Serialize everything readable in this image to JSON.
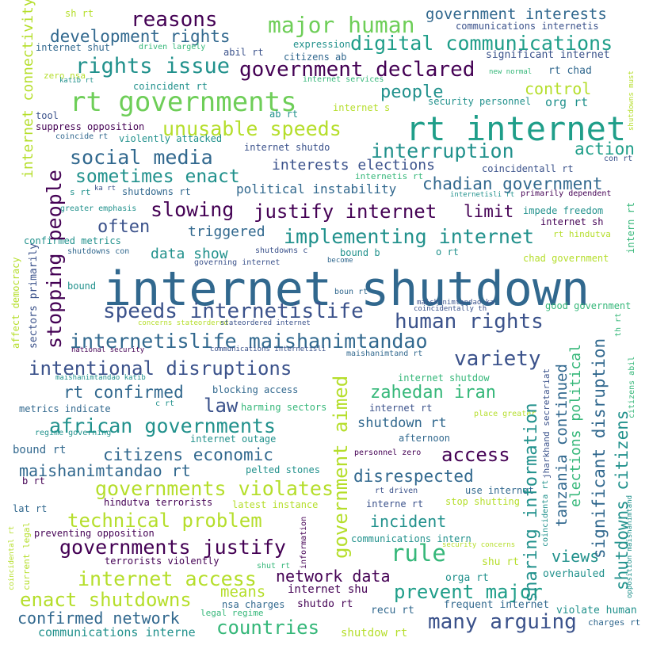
{
  "background": "#ffffff",
  "palette": {
    "deep_purple": "#440154",
    "indigo": "#3b528b",
    "blue": "#31688e",
    "teal": "#21918c",
    "green_teal": "#1f9e89",
    "green": "#35b779",
    "lime": "#6ece58",
    "yellow_green": "#b5de2b",
    "yellow": "#d8e219"
  },
  "words": [
    {
      "text": "internet shutdown",
      "color": "#31688e",
      "orientation": "horizontal"
    },
    {
      "text": "rt internet",
      "color": "#1f9e89",
      "orientation": "horizontal"
    },
    {
      "text": "rt governments",
      "color": "#6ece58",
      "orientation": "horizontal"
    },
    {
      "text": "human rights",
      "color": "#3b528b",
      "orientation": "horizontal"
    },
    {
      "text": "government declared",
      "color": "#440154",
      "orientation": "horizontal"
    },
    {
      "text": "digital communications",
      "color": "#1f9e89",
      "orientation": "horizontal"
    },
    {
      "text": "major human",
      "color": "#6ece58",
      "orientation": "horizontal"
    },
    {
      "text": "reasons",
      "color": "#440154",
      "orientation": "horizontal"
    },
    {
      "text": "development rights",
      "color": "#31688e",
      "orientation": "horizontal"
    },
    {
      "text": "rights issue",
      "color": "#21918c",
      "orientation": "horizontal"
    },
    {
      "text": "government interests",
      "color": "#31688e",
      "orientation": "horizontal"
    },
    {
      "text": "communications internetis",
      "color": "#3b528b",
      "orientation": "horizontal"
    },
    {
      "text": "significant internet",
      "color": "#3b528b",
      "orientation": "horizontal"
    },
    {
      "text": "unusable speeds",
      "color": "#b5de2b",
      "orientation": "horizontal"
    },
    {
      "text": "people",
      "color": "#21918c",
      "orientation": "horizontal"
    },
    {
      "text": "control",
      "color": "#b5de2b",
      "orientation": "horizontal"
    },
    {
      "text": "org rt",
      "color": "#21918c",
      "orientation": "horizontal"
    },
    {
      "text": "rt chad",
      "color": "#31688e",
      "orientation": "horizontal"
    },
    {
      "text": "interruption",
      "color": "#21918c",
      "orientation": "horizontal"
    },
    {
      "text": "action",
      "color": "#1f9e89",
      "orientation": "horizontal"
    },
    {
      "text": "social media",
      "color": "#31688e",
      "orientation": "horizontal"
    },
    {
      "text": "sometimes enact",
      "color": "#21918c",
      "orientation": "horizontal"
    },
    {
      "text": "interests elections",
      "color": "#3b528b",
      "orientation": "horizontal"
    },
    {
      "text": "chadian government",
      "color": "#31688e",
      "orientation": "horizontal"
    },
    {
      "text": "political instability",
      "color": "#31688e",
      "orientation": "horizontal"
    },
    {
      "text": "slowing",
      "color": "#440154",
      "orientation": "horizontal"
    },
    {
      "text": "justify internet",
      "color": "#440154",
      "orientation": "horizontal"
    },
    {
      "text": "limit",
      "color": "#440154",
      "orientation": "horizontal"
    },
    {
      "text": "implementing internet",
      "color": "#21918c",
      "orientation": "horizontal"
    },
    {
      "text": "often",
      "color": "#3b528b",
      "orientation": "horizontal"
    },
    {
      "text": "triggered",
      "color": "#31688e",
      "orientation": "horizontal"
    },
    {
      "text": "data show",
      "color": "#21918c",
      "orientation": "horizontal"
    },
    {
      "text": "speeds internetislife",
      "color": "#3b528b",
      "orientation": "horizontal"
    },
    {
      "text": "internetislife maishanimtandao",
      "color": "#31688e",
      "orientation": "horizontal"
    },
    {
      "text": "intentional disruptions",
      "color": "#3b528b",
      "orientation": "horizontal"
    },
    {
      "text": "variety",
      "color": "#3b528b",
      "orientation": "horizontal"
    },
    {
      "text": "rt confirmed",
      "color": "#31688e",
      "orientation": "horizontal"
    },
    {
      "text": "law",
      "color": "#3b528b",
      "orientation": "horizontal"
    },
    {
      "text": "zahedan iran",
      "color": "#35b779",
      "orientation": "horizontal"
    },
    {
      "text": "african governments",
      "color": "#21918c",
      "orientation": "horizontal"
    },
    {
      "text": "shutdown rt",
      "color": "#31688e",
      "orientation": "horizontal"
    },
    {
      "text": "citizens economic",
      "color": "#31688e",
      "orientation": "horizontal"
    },
    {
      "text": "access",
      "color": "#440154",
      "orientation": "horizontal"
    },
    {
      "text": "maishanimtandao rt",
      "color": "#31688e",
      "orientation": "horizontal"
    },
    {
      "text": "disrespected",
      "color": "#31688e",
      "orientation": "horizontal"
    },
    {
      "text": "governments violates",
      "color": "#b5de2b",
      "orientation": "horizontal"
    },
    {
      "text": "technical problem",
      "color": "#b5de2b",
      "orientation": "horizontal"
    },
    {
      "text": "incident",
      "color": "#21918c",
      "orientation": "horizontal"
    },
    {
      "text": "governments justify",
      "color": "#440154",
      "orientation": "horizontal"
    },
    {
      "text": "rule",
      "color": "#35b779",
      "orientation": "horizontal"
    },
    {
      "text": "views",
      "color": "#21918c",
      "orientation": "horizontal"
    },
    {
      "text": "internet access",
      "color": "#b5de2b",
      "orientation": "horizontal"
    },
    {
      "text": "enact shutdowns",
      "color": "#b5de2b",
      "orientation": "horizontal"
    },
    {
      "text": "means",
      "color": "#b5de2b",
      "orientation": "horizontal"
    },
    {
      "text": "network data",
      "color": "#440154",
      "orientation": "horizontal"
    },
    {
      "text": "prevent major",
      "color": "#1f9e89",
      "orientation": "horizontal"
    },
    {
      "text": "confirmed network",
      "color": "#31688e",
      "orientation": "horizontal"
    },
    {
      "text": "many arguing",
      "color": "#3b528b",
      "orientation": "horizontal"
    },
    {
      "text": "countries",
      "color": "#35b779",
      "orientation": "horizontal"
    },
    {
      "text": "communications interne",
      "color": "#21918c",
      "orientation": "horizontal"
    },
    {
      "text": "shutdow rt",
      "color": "#b5de2b",
      "orientation": "horizontal"
    },
    {
      "text": "frequent internet",
      "color": "#31688e",
      "orientation": "horizontal"
    },
    {
      "text": "recu rt",
      "color": "#31688e",
      "orientation": "horizontal"
    },
    {
      "text": "violate human",
      "color": "#21918c",
      "orientation": "horizontal"
    },
    {
      "text": "charges rt",
      "color": "#31688e",
      "orientation": "horizontal"
    },
    {
      "text": "legal regime",
      "color": "#35b779",
      "orientation": "horizontal"
    },
    {
      "text": "nsa charges",
      "color": "#31688e",
      "orientation": "horizontal"
    },
    {
      "text": "shutdo rt",
      "color": "#440154",
      "orientation": "horizontal"
    },
    {
      "text": "internet shu",
      "color": "#440154",
      "orientation": "horizontal"
    },
    {
      "text": "orga rt",
      "color": "#21918c",
      "orientation": "horizontal"
    },
    {
      "text": "shu rt",
      "color": "#b5de2b",
      "orientation": "horizontal"
    },
    {
      "text": "overhauled",
      "color": "#21918c",
      "orientation": "horizontal"
    },
    {
      "text": "sh rt",
      "color": "#b5de2b",
      "orientation": "horizontal"
    },
    {
      "text": "internet shut",
      "color": "#31688e",
      "orientation": "horizontal"
    },
    {
      "text": "driven largely",
      "color": "#35b779",
      "orientation": "horizontal"
    },
    {
      "text": "abil rt",
      "color": "#3b528b",
      "orientation": "horizontal"
    },
    {
      "text": "expression",
      "color": "#21918c",
      "orientation": "horizontal"
    },
    {
      "text": "citizens ab",
      "color": "#31688e",
      "orientation": "horizontal"
    },
    {
      "text": "zero nsa",
      "color": "#b5de2b",
      "orientation": "horizontal"
    },
    {
      "text": "katib rt",
      "color": "#21918c",
      "orientation": "horizontal"
    },
    {
      "text": "coincident rt",
      "color": "#21918c",
      "orientation": "horizontal"
    },
    {
      "text": "internet services",
      "color": "#35b779",
      "orientation": "horizontal"
    },
    {
      "text": "new normal",
      "color": "#35b779",
      "orientation": "horizontal"
    },
    {
      "text": "internet s",
      "color": "#b5de2b",
      "orientation": "horizontal"
    },
    {
      "text": "security personnel",
      "color": "#21918c",
      "orientation": "horizontal"
    },
    {
      "text": "ab rt",
      "color": "#21918c",
      "orientation": "horizontal"
    },
    {
      "text": "tool",
      "color": "#3b528b",
      "orientation": "horizontal"
    },
    {
      "text": "suppress opposition",
      "color": "#440154",
      "orientation": "horizontal"
    },
    {
      "text": "coincide rt",
      "color": "#31688e",
      "orientation": "horizontal"
    },
    {
      "text": "violently attacked",
      "color": "#21918c",
      "orientation": "horizontal"
    },
    {
      "text": "internet shutdo",
      "color": "#3b528b",
      "orientation": "horizontal"
    },
    {
      "text": "con rt",
      "color": "#3b528b",
      "orientation": "horizontal"
    },
    {
      "text": "coincidentall rt",
      "color": "#3b528b",
      "orientation": "horizontal"
    },
    {
      "text": "internetis rt",
      "color": "#35b779",
      "orientation": "horizontal"
    },
    {
      "text": "s rt",
      "color": "#21918c",
      "orientation": "horizontal"
    },
    {
      "text": "ka rt",
      "color": "#3b528b",
      "orientation": "horizontal"
    },
    {
      "text": "shutdowns rt",
      "color": "#31688e",
      "orientation": "horizontal"
    },
    {
      "text": "internetisli rt",
      "color": "#21918c",
      "orientation": "horizontal"
    },
    {
      "text": "primarily dependent",
      "color": "#440154",
      "orientation": "horizontal"
    },
    {
      "text": "greater emphasis",
      "color": "#21918c",
      "orientation": "horizontal"
    },
    {
      "text": "impede freedom",
      "color": "#21918c",
      "orientation": "horizontal"
    },
    {
      "text": "internet sh",
      "color": "#440154",
      "orientation": "horizontal"
    },
    {
      "text": "rt hindutva",
      "color": "#b5de2b",
      "orientation": "horizontal"
    },
    {
      "text": "confirmed metrics",
      "color": "#21918c",
      "orientation": "horizontal"
    },
    {
      "text": "shutdowns con",
      "color": "#31688e",
      "orientation": "horizontal"
    },
    {
      "text": "shutdowns c",
      "color": "#3b528b",
      "orientation": "horizontal"
    },
    {
      "text": "bound b",
      "color": "#21918c",
      "orientation": "horizontal"
    },
    {
      "text": "o rt",
      "color": "#21918c",
      "orientation": "horizontal"
    },
    {
      "text": "governing internet",
      "color": "#3b528b",
      "orientation": "horizontal"
    },
    {
      "text": "become",
      "color": "#31688e",
      "orientation": "horizontal"
    },
    {
      "text": "chad government",
      "color": "#b5de2b",
      "orientation": "horizontal"
    },
    {
      "text": "bound",
      "color": "#21918c",
      "orientation": "horizontal"
    },
    {
      "text": "boun rt",
      "color": "#31688e",
      "orientation": "horizontal"
    },
    {
      "text": "maishanimtandao ka",
      "color": "#3b528b",
      "orientation": "horizontal"
    },
    {
      "text": "coincidentally th",
      "color": "#3b528b",
      "orientation": "horizontal"
    },
    {
      "text": "good government",
      "color": "#35b779",
      "orientation": "horizontal"
    },
    {
      "text": "concerns stateordered",
      "color": "#b5de2b",
      "orientation": "horizontal"
    },
    {
      "text": "stateordered internet",
      "color": "#3b528b",
      "orientation": "horizontal"
    },
    {
      "text": "national security",
      "color": "#440154",
      "orientation": "horizontal"
    },
    {
      "text": "communications internetisli",
      "color": "#3b528b",
      "orientation": "horizontal"
    },
    {
      "text": "maishanimtand rt",
      "color": "#31688e",
      "orientation": "horizontal"
    },
    {
      "text": "maishanimtandao katib",
      "color": "#21918c",
      "orientation": "horizontal"
    },
    {
      "text": "internet shutdow",
      "color": "#35b779",
      "orientation": "horizontal"
    },
    {
      "text": "blocking access",
      "color": "#31688e",
      "orientation": "horizontal"
    },
    {
      "text": "metrics indicate",
      "color": "#31688e",
      "orientation": "horizontal"
    },
    {
      "text": "c rt",
      "color": "#21918c",
      "orientation": "horizontal"
    },
    {
      "text": "harming sectors",
      "color": "#35b779",
      "orientation": "horizontal"
    },
    {
      "text": "internet rt",
      "color": "#3b528b",
      "orientation": "horizontal"
    },
    {
      "text": "place greater",
      "color": "#b5de2b",
      "orientation": "horizontal"
    },
    {
      "text": "regime governing",
      "color": "#21918c",
      "orientation": "horizontal"
    },
    {
      "text": "internet outage",
      "color": "#21918c",
      "orientation": "horizontal"
    },
    {
      "text": "afternoon",
      "color": "#31688e",
      "orientation": "horizontal"
    },
    {
      "text": "bound rt",
      "color": "#31688e",
      "orientation": "horizontal"
    },
    {
      "text": "pelted stones",
      "color": "#21918c",
      "orientation": "horizontal"
    },
    {
      "text": "personnel zero",
      "color": "#440154",
      "orientation": "horizontal"
    },
    {
      "text": "b rt",
      "color": "#440154",
      "orientation": "horizontal"
    },
    {
      "text": "use internet",
      "color": "#31688e",
      "orientation": "horizontal"
    },
    {
      "text": "rt driven",
      "color": "#3b528b",
      "orientation": "horizontal"
    },
    {
      "text": "stop shutting",
      "color": "#b5de2b",
      "orientation": "horizontal"
    },
    {
      "text": "interne rt",
      "color": "#3b528b",
      "orientation": "horizontal"
    },
    {
      "text": "lat rt",
      "color": "#31688e",
      "orientation": "horizontal"
    },
    {
      "text": "hindutva terrorists",
      "color": "#440154",
      "orientation": "horizontal"
    },
    {
      "text": "latest instance",
      "color": "#b5de2b",
      "orientation": "horizontal"
    },
    {
      "text": "preventing opposition",
      "color": "#440154",
      "orientation": "horizontal"
    },
    {
      "text": "communications intern",
      "color": "#21918c",
      "orientation": "horizontal"
    },
    {
      "text": "security concerns",
      "color": "#b5de2b",
      "orientation": "horizontal"
    },
    {
      "text": "terrorists violently",
      "color": "#440154",
      "orientation": "horizontal"
    },
    {
      "text": "shut rt",
      "color": "#35b779",
      "orientation": "horizontal"
    },
    {
      "text": "internet connectivity",
      "color": "#b5de2b",
      "orientation": "vertical"
    },
    {
      "text": "stopping people",
      "color": "#440154",
      "orientation": "vertical"
    },
    {
      "text": "government aimed",
      "color": "#b5de2b",
      "orientation": "vertical"
    },
    {
      "text": "sharing information",
      "color": "#21918c",
      "orientation": "vertical"
    },
    {
      "text": "tanzania continued",
      "color": "#31688e",
      "orientation": "vertical"
    },
    {
      "text": "elections political",
      "color": "#35b779",
      "orientation": "vertical"
    },
    {
      "text": "significant disruption",
      "color": "#31688e",
      "orientation": "vertical"
    },
    {
      "text": "shutdowns citizens",
      "color": "#21918c",
      "orientation": "vertical"
    },
    {
      "text": "affect democracy",
      "color": "#b5de2b",
      "orientation": "vertical"
    },
    {
      "text": "sectors primarily",
      "color": "#3b528b",
      "orientation": "vertical"
    },
    {
      "text": "jharkhand secretariat",
      "color": "#3b528b",
      "orientation": "vertical"
    },
    {
      "text": "coincidenta rt",
      "color": "#21918c",
      "orientation": "vertical"
    },
    {
      "text": "opposition maishanimtand",
      "color": "#21918c",
      "orientation": "vertical"
    },
    {
      "text": "citizens abil",
      "color": "#35b779",
      "orientation": "vertical"
    },
    {
      "text": "shutdowns must",
      "color": "#b5de2b",
      "orientation": "vertical"
    },
    {
      "text": "intern rt",
      "color": "#35b779",
      "orientation": "vertical"
    },
    {
      "text": "th rt",
      "color": "#35b779",
      "orientation": "vertical"
    },
    {
      "text": "current legal",
      "color": "#b5de2b",
      "orientation": "vertical"
    },
    {
      "text": "coincidental rt",
      "color": "#b5de2b",
      "orientation": "vertical"
    },
    {
      "text": "information",
      "color": "#440154",
      "orientation": "vertical"
    }
  ]
}
